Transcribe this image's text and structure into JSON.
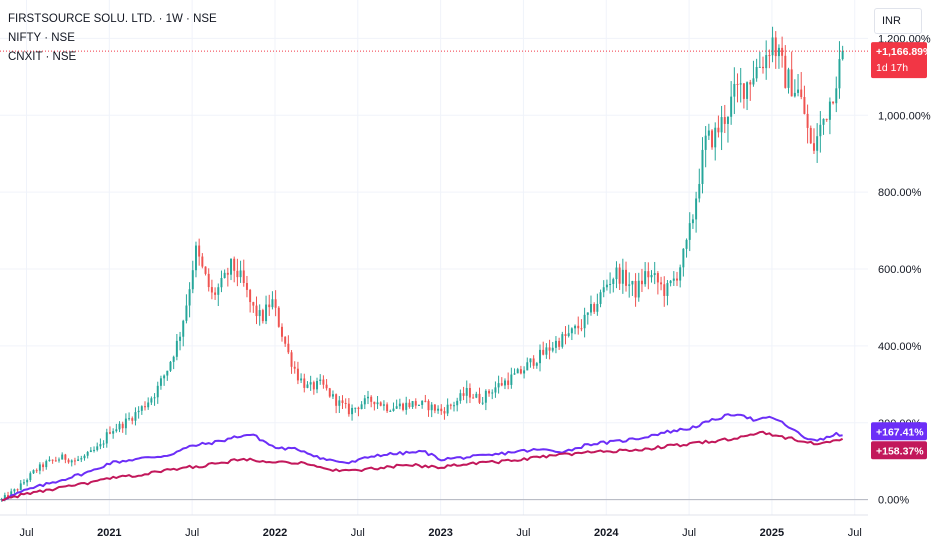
{
  "legend": {
    "main": "FIRSTSOURCE SOLU. LTD. · 1W · NSE",
    "compare1": "NIFTY · NSE",
    "compare2": "CNXIT · NSE"
  },
  "currency_button": "INR",
  "colors": {
    "up": "#26a69a",
    "down": "#ef5350",
    "nifty": "#6c2ef7",
    "cnxit": "#c2185b",
    "last_price_badge": "#f23645",
    "grid": "#f0f3fa"
  },
  "last_badges": {
    "main_value": "+1,166.89%",
    "main_countdown": "1d 17h",
    "nifty_value": "+167.41%",
    "cnxit_value": "+158.37%"
  },
  "chart_data": {
    "type": "candlestick",
    "title": "FIRSTSOURCE SOLU. LTD. · 1W · NSE",
    "scale": "percent",
    "ylim": [
      -40,
      1300
    ],
    "y_ticks": [
      "0.00%",
      "200.00%",
      "400.00%",
      "600.00%",
      "800.00%",
      "1,000.00%",
      "1,200.00%"
    ],
    "y_tick_values": [
      0,
      200,
      400,
      600,
      800,
      1000,
      1200
    ],
    "xlim": [
      2020.34,
      2025.58
    ],
    "x_ticks": [
      "Jul",
      "2021",
      "Jul",
      "2022",
      "Jul",
      "2023",
      "Jul",
      "2024",
      "Jul",
      "2025",
      "Jul"
    ],
    "x_tick_values": [
      2020.5,
      2021.0,
      2021.5,
      2022.0,
      2022.5,
      2023.0,
      2023.5,
      2024.0,
      2024.5,
      2025.0,
      2025.5
    ],
    "main_path_points": [
      [
        2020.35,
        0
      ],
      [
        2020.45,
        30
      ],
      [
        2020.55,
        75
      ],
      [
        2020.62,
        95
      ],
      [
        2020.72,
        110
      ],
      [
        2020.8,
        100
      ],
      [
        2020.88,
        118
      ],
      [
        2020.95,
        140
      ],
      [
        2021.0,
        180
      ],
      [
        2021.06,
        190
      ],
      [
        2021.12,
        210
      ],
      [
        2021.2,
        240
      ],
      [
        2021.28,
        280
      ],
      [
        2021.35,
        340
      ],
      [
        2021.42,
        420
      ],
      [
        2021.47,
        520
      ],
      [
        2021.52,
        650
      ],
      [
        2021.56,
        600
      ],
      [
        2021.62,
        530
      ],
      [
        2021.68,
        560
      ],
      [
        2021.74,
        610
      ],
      [
        2021.8,
        570
      ],
      [
        2021.86,
        500
      ],
      [
        2021.92,
        470
      ],
      [
        2021.98,
        520
      ],
      [
        2022.03,
        450
      ],
      [
        2022.08,
        380
      ],
      [
        2022.14,
        320
      ],
      [
        2022.2,
        290
      ],
      [
        2022.28,
        300
      ],
      [
        2022.36,
        260
      ],
      [
        2022.45,
        230
      ],
      [
        2022.52,
        250
      ],
      [
        2022.6,
        260
      ],
      [
        2022.68,
        240
      ],
      [
        2022.76,
        245
      ],
      [
        2022.84,
        250
      ],
      [
        2022.92,
        245
      ],
      [
        2023.0,
        230
      ],
      [
        2023.08,
        250
      ],
      [
        2023.16,
        280
      ],
      [
        2023.24,
        260
      ],
      [
        2023.32,
        290
      ],
      [
        2023.4,
        310
      ],
      [
        2023.48,
        330
      ],
      [
        2023.55,
        360
      ],
      [
        2023.62,
        380
      ],
      [
        2023.7,
        410
      ],
      [
        2023.78,
        430
      ],
      [
        2023.86,
        460
      ],
      [
        2023.94,
        510
      ],
      [
        2024.0,
        560
      ],
      [
        2024.06,
        590
      ],
      [
        2024.12,
        570
      ],
      [
        2024.18,
        540
      ],
      [
        2024.24,
        590
      ],
      [
        2024.3,
        570
      ],
      [
        2024.36,
        540
      ],
      [
        2024.42,
        580
      ],
      [
        2024.48,
        650
      ],
      [
        2024.52,
        730
      ],
      [
        2024.56,
        840
      ],
      [
        2024.6,
        930
      ],
      [
        2024.66,
        950
      ],
      [
        2024.72,
        1000
      ],
      [
        2024.78,
        1060
      ],
      [
        2024.84,
        1080
      ],
      [
        2024.9,
        1120
      ],
      [
        2024.96,
        1150
      ],
      [
        2025.0,
        1200
      ],
      [
        2025.04,
        1150
      ],
      [
        2025.08,
        1100
      ],
      [
        2025.12,
        1080
      ],
      [
        2025.16,
        1060
      ],
      [
        2025.2,
        1000
      ],
      [
        2025.24,
        900
      ],
      [
        2025.28,
        950
      ],
      [
        2025.32,
        1000
      ],
      [
        2025.36,
        1050
      ],
      [
        2025.4,
        1120
      ],
      [
        2025.44,
        1166.89
      ]
    ],
    "series": [
      {
        "name": "NIFTY · NSE",
        "last": 167.41,
        "points": [
          [
            2020.35,
            0
          ],
          [
            2020.5,
            25
          ],
          [
            2020.7,
            50
          ],
          [
            2020.9,
            75
          ],
          [
            2021.0,
            95
          ],
          [
            2021.15,
            105
          ],
          [
            2021.35,
            115
          ],
          [
            2021.5,
            140
          ],
          [
            2021.65,
            150
          ],
          [
            2021.78,
            165
          ],
          [
            2021.86,
            170
          ],
          [
            2022.0,
            135
          ],
          [
            2022.15,
            130
          ],
          [
            2022.3,
            105
          ],
          [
            2022.45,
            95
          ],
          [
            2022.6,
            115
          ],
          [
            2022.75,
            120
          ],
          [
            2022.9,
            125
          ],
          [
            2023.0,
            105
          ],
          [
            2023.15,
            110
          ],
          [
            2023.3,
            115
          ],
          [
            2023.45,
            125
          ],
          [
            2023.6,
            130
          ],
          [
            2023.75,
            125
          ],
          [
            2023.9,
            145
          ],
          [
            2024.05,
            150
          ],
          [
            2024.2,
            160
          ],
          [
            2024.35,
            175
          ],
          [
            2024.5,
            185
          ],
          [
            2024.6,
            200
          ],
          [
            2024.7,
            215
          ],
          [
            2024.8,
            225
          ],
          [
            2024.9,
            205
          ],
          [
            2025.0,
            215
          ],
          [
            2025.1,
            190
          ],
          [
            2025.2,
            160
          ],
          [
            2025.3,
            155
          ],
          [
            2025.38,
            170
          ],
          [
            2025.44,
            167.41
          ]
        ]
      },
      {
        "name": "CNXIT · NSE",
        "last": 158.37,
        "points": [
          [
            2020.35,
            0
          ],
          [
            2020.5,
            15
          ],
          [
            2020.7,
            30
          ],
          [
            2020.9,
            45
          ],
          [
            2021.0,
            55
          ],
          [
            2021.2,
            65
          ],
          [
            2021.4,
            80
          ],
          [
            2021.6,
            90
          ],
          [
            2021.8,
            105
          ],
          [
            2022.0,
            100
          ],
          [
            2022.15,
            95
          ],
          [
            2022.3,
            80
          ],
          [
            2022.45,
            75
          ],
          [
            2022.6,
            80
          ],
          [
            2022.8,
            90
          ],
          [
            2023.0,
            85
          ],
          [
            2023.2,
            95
          ],
          [
            2023.4,
            100
          ],
          [
            2023.6,
            110
          ],
          [
            2023.8,
            120
          ],
          [
            2024.0,
            125
          ],
          [
            2024.2,
            130
          ],
          [
            2024.4,
            140
          ],
          [
            2024.6,
            150
          ],
          [
            2024.8,
            160
          ],
          [
            2024.95,
            175
          ],
          [
            2025.05,
            165
          ],
          [
            2025.2,
            150
          ],
          [
            2025.3,
            145
          ],
          [
            2025.38,
            155
          ],
          [
            2025.44,
            158.37
          ]
        ]
      }
    ]
  }
}
